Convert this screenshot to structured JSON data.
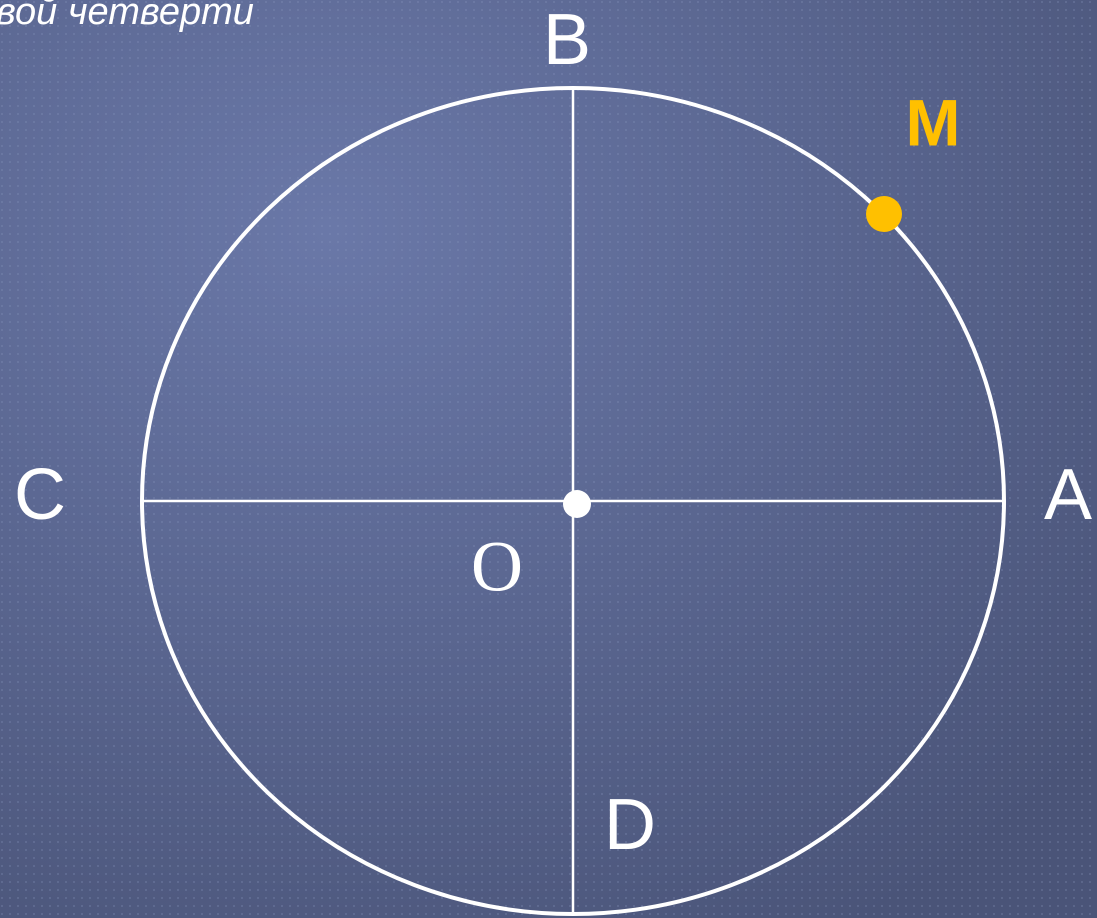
{
  "header_text": "вой четверти",
  "labels": {
    "B": "B",
    "M": "M",
    "C": "C",
    "A": "A",
    "O": "O",
    "D": "D"
  }
}
